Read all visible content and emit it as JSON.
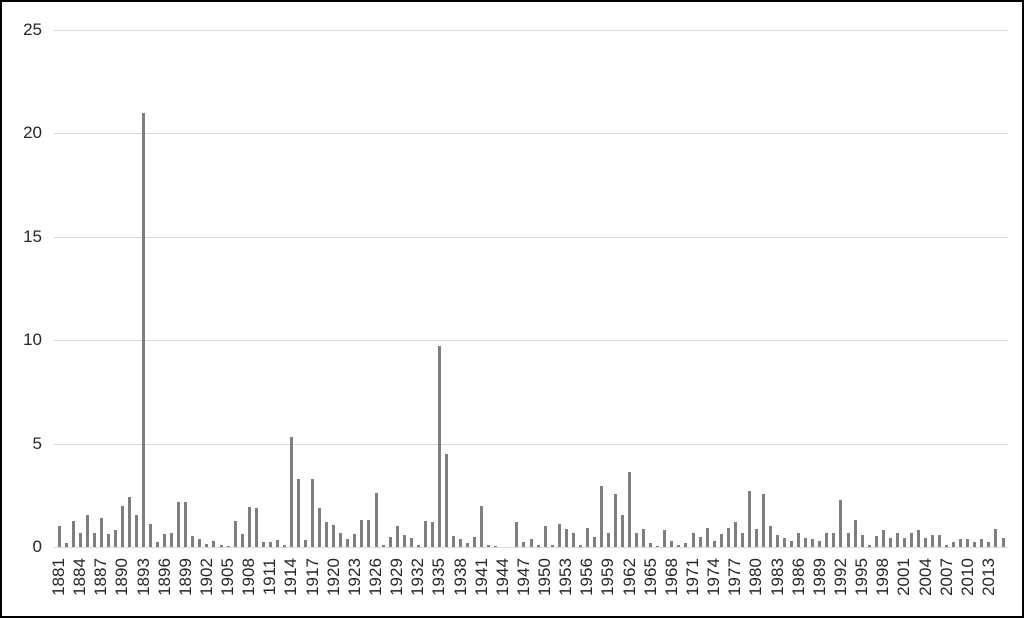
{
  "chart_data": {
    "type": "bar",
    "title": "",
    "xlabel": "",
    "ylabel": "",
    "ylim": [
      0,
      25
    ],
    "y_ticks": [
      0,
      5,
      10,
      15,
      20,
      25
    ],
    "grid": "horizontal",
    "legend": "none",
    "bar_color": "#7f7f7f",
    "gridline_color": "#d9d9d9",
    "background_color": "#ffffff",
    "border_color": "#000000",
    "x_tick_interval": 3,
    "x_tick_labels": [
      "1881",
      "1884",
      "1887",
      "1890",
      "1893",
      "1896",
      "1899",
      "1902",
      "1905",
      "1908",
      "1911",
      "1914",
      "1917",
      "1920",
      "1923",
      "1926",
      "1929",
      "1932",
      "1935",
      "1938",
      "1941",
      "1944",
      "1947",
      "1950",
      "1953",
      "1956",
      "1959",
      "1962",
      "1965",
      "1968",
      "1971",
      "1974",
      "1977",
      "1980",
      "1983",
      "1986",
      "1989",
      "1992",
      "1995",
      "1998",
      "2001",
      "2004",
      "2007",
      "2010",
      "2013"
    ],
    "categories": [
      1881,
      1882,
      1883,
      1884,
      1885,
      1886,
      1887,
      1888,
      1889,
      1890,
      1891,
      1892,
      1893,
      1894,
      1895,
      1896,
      1897,
      1898,
      1899,
      1900,
      1901,
      1902,
      1903,
      1904,
      1905,
      1906,
      1907,
      1908,
      1909,
      1910,
      1911,
      1912,
      1913,
      1914,
      1915,
      1916,
      1917,
      1918,
      1919,
      1920,
      1921,
      1922,
      1923,
      1924,
      1925,
      1926,
      1927,
      1928,
      1929,
      1930,
      1931,
      1932,
      1933,
      1934,
      1935,
      1936,
      1937,
      1938,
      1939,
      1940,
      1941,
      1942,
      1943,
      1944,
      1945,
      1946,
      1947,
      1948,
      1949,
      1950,
      1951,
      1952,
      1953,
      1954,
      1955,
      1956,
      1957,
      1958,
      1959,
      1960,
      1961,
      1962,
      1963,
      1964,
      1965,
      1966,
      1967,
      1968,
      1969,
      1970,
      1971,
      1972,
      1973,
      1974,
      1975,
      1976,
      1977,
      1978,
      1979,
      1980,
      1981,
      1982,
      1983,
      1984,
      1985,
      1986,
      1987,
      1988,
      1989,
      1990,
      1991,
      1992,
      1993,
      1994,
      1995,
      1996,
      1997,
      1998,
      1999,
      2000,
      2001,
      2002,
      2003,
      2004,
      2005,
      2006,
      2007,
      2008,
      2009,
      2010,
      2011,
      2012,
      2013,
      2014,
      2015
    ],
    "values": [
      1.0,
      0.2,
      1.25,
      0.7,
      1.55,
      0.7,
      1.4,
      0.65,
      0.8,
      2.0,
      2.4,
      1.55,
      21.0,
      1.1,
      0.25,
      0.65,
      0.7,
      2.2,
      2.2,
      0.55,
      0.4,
      0.15,
      0.3,
      0.1,
      0.05,
      1.25,
      0.65,
      1.95,
      1.9,
      0.25,
      0.25,
      0.35,
      0.1,
      5.3,
      3.3,
      0.35,
      3.3,
      1.9,
      1.2,
      1.05,
      0.7,
      0.4,
      0.65,
      1.3,
      1.3,
      2.6,
      0.1,
      0.5,
      1.0,
      0.6,
      0.45,
      0.1,
      1.25,
      1.2,
      9.7,
      4.5,
      0.55,
      0.4,
      0.2,
      0.5,
      2.0,
      0.1,
      0.05,
      0,
      0,
      1.2,
      0.25,
      0.4,
      0.1,
      1.0,
      0.1,
      1.1,
      0.85,
      0.7,
      0.1,
      0.9,
      0.5,
      2.95,
      0.7,
      2.55,
      1.55,
      3.65,
      0.7,
      0.85,
      0.2,
      0.05,
      0.8,
      0.3,
      0.1,
      0.2,
      0.7,
      0.5,
      0.9,
      0.3,
      0.65,
      0.9,
      1.2,
      0.7,
      2.7,
      0.85,
      2.55,
      1.0,
      0.6,
      0.45,
      0.3,
      0.7,
      0.45,
      0.4,
      0.3,
      0.7,
      0.7,
      2.25,
      0.7,
      1.3,
      0.6,
      0.1,
      0.55,
      0.8,
      0.45,
      0.7,
      0.45,
      0.7,
      0.8,
      0.45,
      0.6,
      0.6,
      0.1,
      0.25,
      0.4,
      0.4,
      0.25,
      0.4,
      0.25,
      0.85,
      0.45
    ]
  }
}
